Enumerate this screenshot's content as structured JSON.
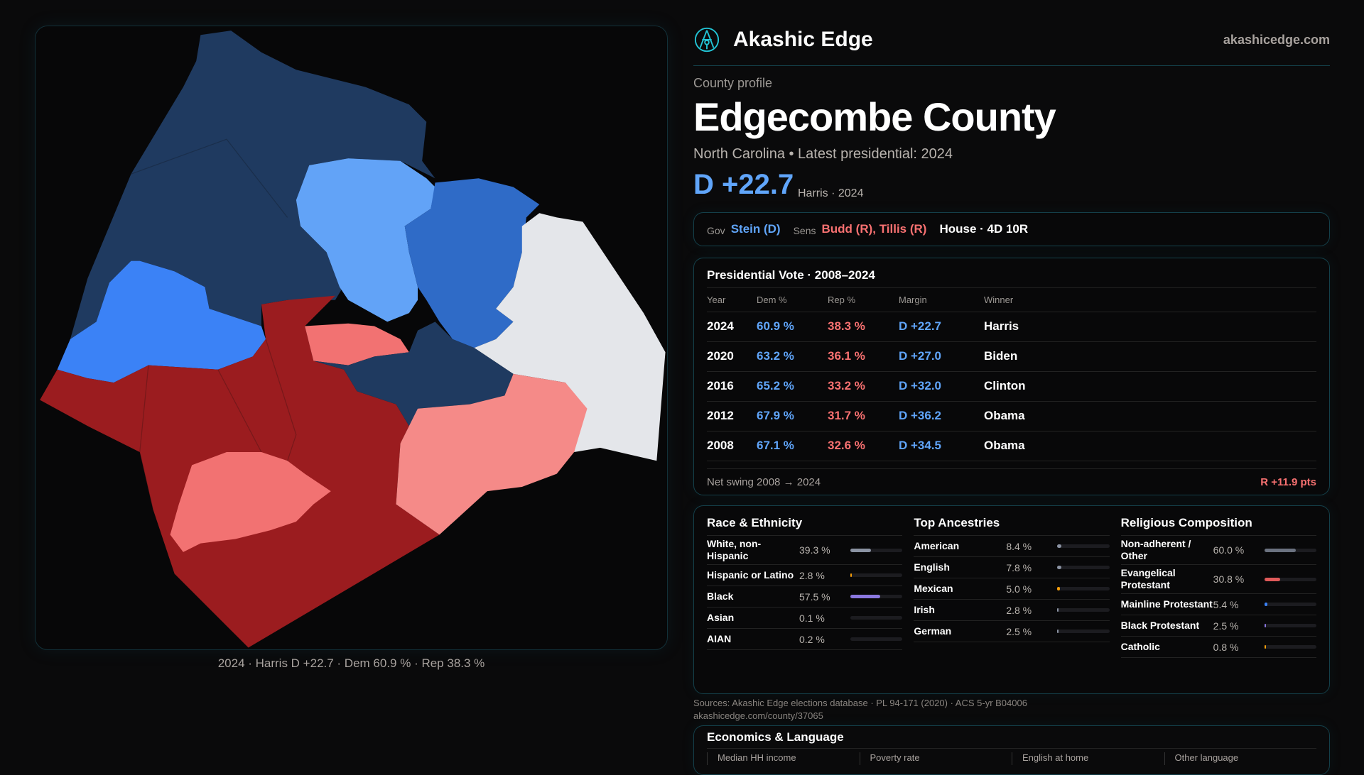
{
  "map": {
    "caption": "2024 · Harris D +22.7 · Dem 60.9 % · Rep 38.3 %",
    "colors": {
      "navy": "#1f3a60",
      "light_blue": "#62a3f7",
      "mid_blue": "#2f6bc7",
      "bright_blue": "#3b82f6",
      "gray": "#e4e6ea",
      "dark_red": "#9b1c1f",
      "pink": "#f27272",
      "salmon": "#f58a88"
    }
  },
  "header": {
    "brand": "Akashic Edge",
    "site": "akashicedge.com",
    "logo_icon": "akashic-logo-icon"
  },
  "profile": {
    "kicker": "County profile",
    "title": "Edgecombe County",
    "subtitle": "North Carolina • Latest presidential: 2024",
    "margin": "D +22.7",
    "margin_note": "Harris · 2024"
  },
  "officials": {
    "gov_label": "Gov",
    "gov": "Stein (D)",
    "sens_label": "Sens",
    "sens": "Budd (R), Tillis (R)",
    "house": "House · 4D 10R"
  },
  "presidential": {
    "title": "Presidential Vote · 2008–2024",
    "headers": [
      "Year",
      "Dem %",
      "Rep %",
      "Margin",
      "Winner"
    ],
    "rows": [
      [
        "2024",
        "60.9 %",
        "38.3 %",
        "D +22.7",
        "Harris"
      ],
      [
        "2020",
        "63.2 %",
        "36.1 %",
        "D +27.0",
        "Biden"
      ],
      [
        "2016",
        "65.2 %",
        "33.2 %",
        "D +32.0",
        "Clinton"
      ],
      [
        "2012",
        "67.9 %",
        "31.7 %",
        "D +36.2",
        "Obama"
      ],
      [
        "2008",
        "67.1 %",
        "32.6 %",
        "D +34.5",
        "Obama"
      ]
    ],
    "swing_label": "Net swing 2008 → 2024",
    "swing_value": "R +11.9 pts"
  },
  "demographics": [
    {
      "title": "Race & Ethnicity",
      "items": [
        {
          "name": "White, non-Hispanic",
          "pct": "39.3 %",
          "value": 39.3,
          "color": "#8b93a3"
        },
        {
          "name": "Hispanic or Latino",
          "pct": "2.8 %",
          "value": 2.8,
          "color": "#f59e0b"
        },
        {
          "name": "Black",
          "pct": "57.5 %",
          "value": 57.5,
          "color": "#8b78e0"
        },
        {
          "name": "Asian",
          "pct": "0.1 %",
          "value": 0.1,
          "color": "#60a5fa"
        },
        {
          "name": "AIAN",
          "pct": "0.2 %",
          "value": 0.2,
          "color": "#60a5fa"
        }
      ]
    },
    {
      "title": "Top Ancestries",
      "items": [
        {
          "name": "American",
          "pct": "8.4 %",
          "value": 8.4,
          "color": "#8b93a3"
        },
        {
          "name": "English",
          "pct": "7.8 %",
          "value": 7.8,
          "color": "#8b93a3"
        },
        {
          "name": "Mexican",
          "pct": "5.0 %",
          "value": 5.0,
          "color": "#f59e0b"
        },
        {
          "name": "Irish",
          "pct": "2.8 %",
          "value": 2.8,
          "color": "#8b93a3"
        },
        {
          "name": "German",
          "pct": "2.5 %",
          "value": 2.5,
          "color": "#8b93a3"
        }
      ]
    },
    {
      "title": "Religious Composition",
      "items": [
        {
          "name": "Non-adherent / Other",
          "pct": "60.0 %",
          "value": 60.0,
          "color": "#6b7280"
        },
        {
          "name": "Evangelical Protestant",
          "pct": "30.8 %",
          "value": 30.8,
          "color": "#e05a5a"
        },
        {
          "name": "Mainline Protestant",
          "pct": "5.4 %",
          "value": 5.4,
          "color": "#3b82f6"
        },
        {
          "name": "Black Protestant",
          "pct": "2.5 %",
          "value": 2.5,
          "color": "#8b78e0"
        },
        {
          "name": "Catholic",
          "pct": "0.8 %",
          "value": 0.8,
          "color": "#f59e0b"
        }
      ]
    }
  ],
  "sources": {
    "line1": "Sources: Akashic Edge elections database · PL 94-171 (2020) · ACS 5-yr B04006",
    "line2": "akashicedge.com/county/37065"
  },
  "economics": {
    "title": "Economics & Language",
    "cols": [
      "Median HH income",
      "Poverty rate",
      "English at home",
      "Other language"
    ]
  }
}
